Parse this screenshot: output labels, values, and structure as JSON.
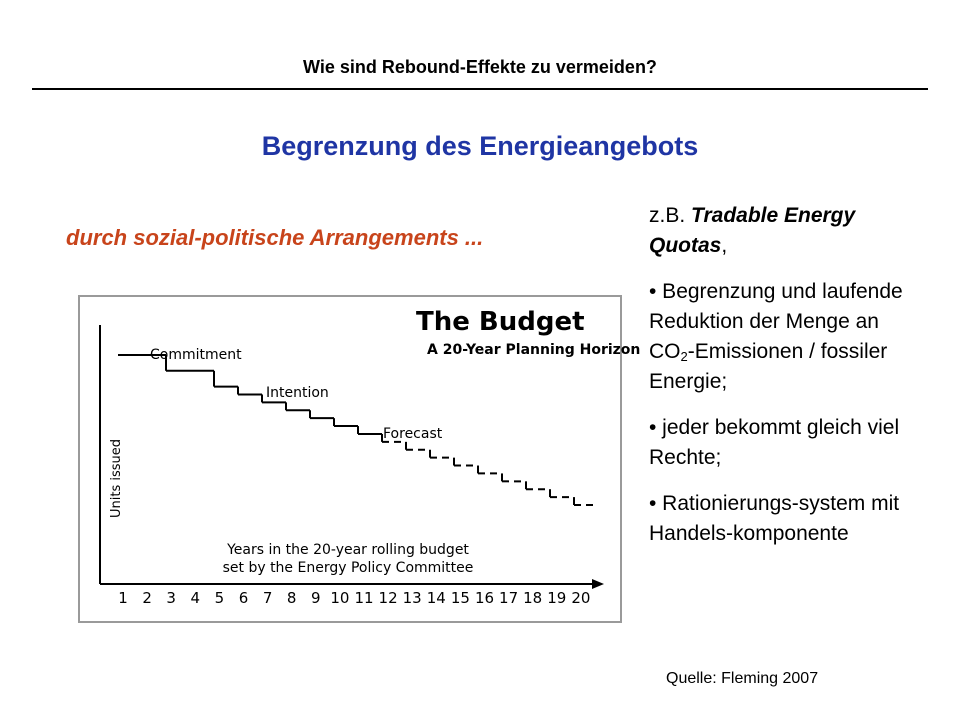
{
  "header": {
    "title": "Wie sind Rebound-Effekte zu vermeiden?"
  },
  "main": {
    "title": "Begrenzung des Energieangebots",
    "subtitle": "durch sozial-politische Arrangements ..."
  },
  "figure": {
    "heading": "The Budget",
    "subheading": "A 20-Year Planning Horizon",
    "labels": {
      "commitment": "Commitment",
      "intention": "Intention",
      "forecast": "Forecast"
    },
    "ylabel": "Units issued",
    "xlabel_line1": "Years in the 20-year rolling budget",
    "xlabel_line2": "set by the Energy Policy Committee"
  },
  "chart_data": {
    "type": "line",
    "title": "The Budget",
    "subtitle": "A 20-Year Planning Horizon",
    "xlabel": "Years in the 20-year rolling budget set by the Energy Policy Committee",
    "ylabel": "Units issued",
    "categories": [
      "1",
      "2",
      "3",
      "4",
      "5",
      "6",
      "7",
      "8",
      "9",
      "10",
      "11",
      "12",
      "13",
      "14",
      "15",
      "16",
      "17",
      "18",
      "19",
      "20"
    ],
    "segments": [
      {
        "name": "Commitment",
        "years": [
          1,
          5
        ],
        "style": "solid"
      },
      {
        "name": "Intention",
        "years": [
          6,
          11
        ],
        "style": "solid"
      },
      {
        "name": "Forecast",
        "years": [
          12,
          20
        ],
        "style": "dashed"
      }
    ],
    "values": [
      100,
      100,
      94,
      94,
      88,
      85,
      82,
      79,
      76,
      73,
      70,
      67,
      64,
      61,
      58,
      55,
      52,
      49,
      46,
      43
    ],
    "ylim": [
      0,
      110
    ],
    "grid": false,
    "legend": "none"
  },
  "side": {
    "intro_prefix": "z.B. ",
    "intro_bold": "Tradable Energy Quotas",
    "intro_suffix": ",",
    "b1_pre": "• Begrenzung und laufende Reduktion der Menge an CO",
    "b1_sub": "2",
    "b1_post": "-Emissionen / fossiler Energie;",
    "b2": "• jeder bekommt gleich viel Rechte;",
    "b3": "• Rationierungs-system mit Handels-komponente"
  },
  "footer": {
    "source": "Quelle: Fleming 2007"
  }
}
